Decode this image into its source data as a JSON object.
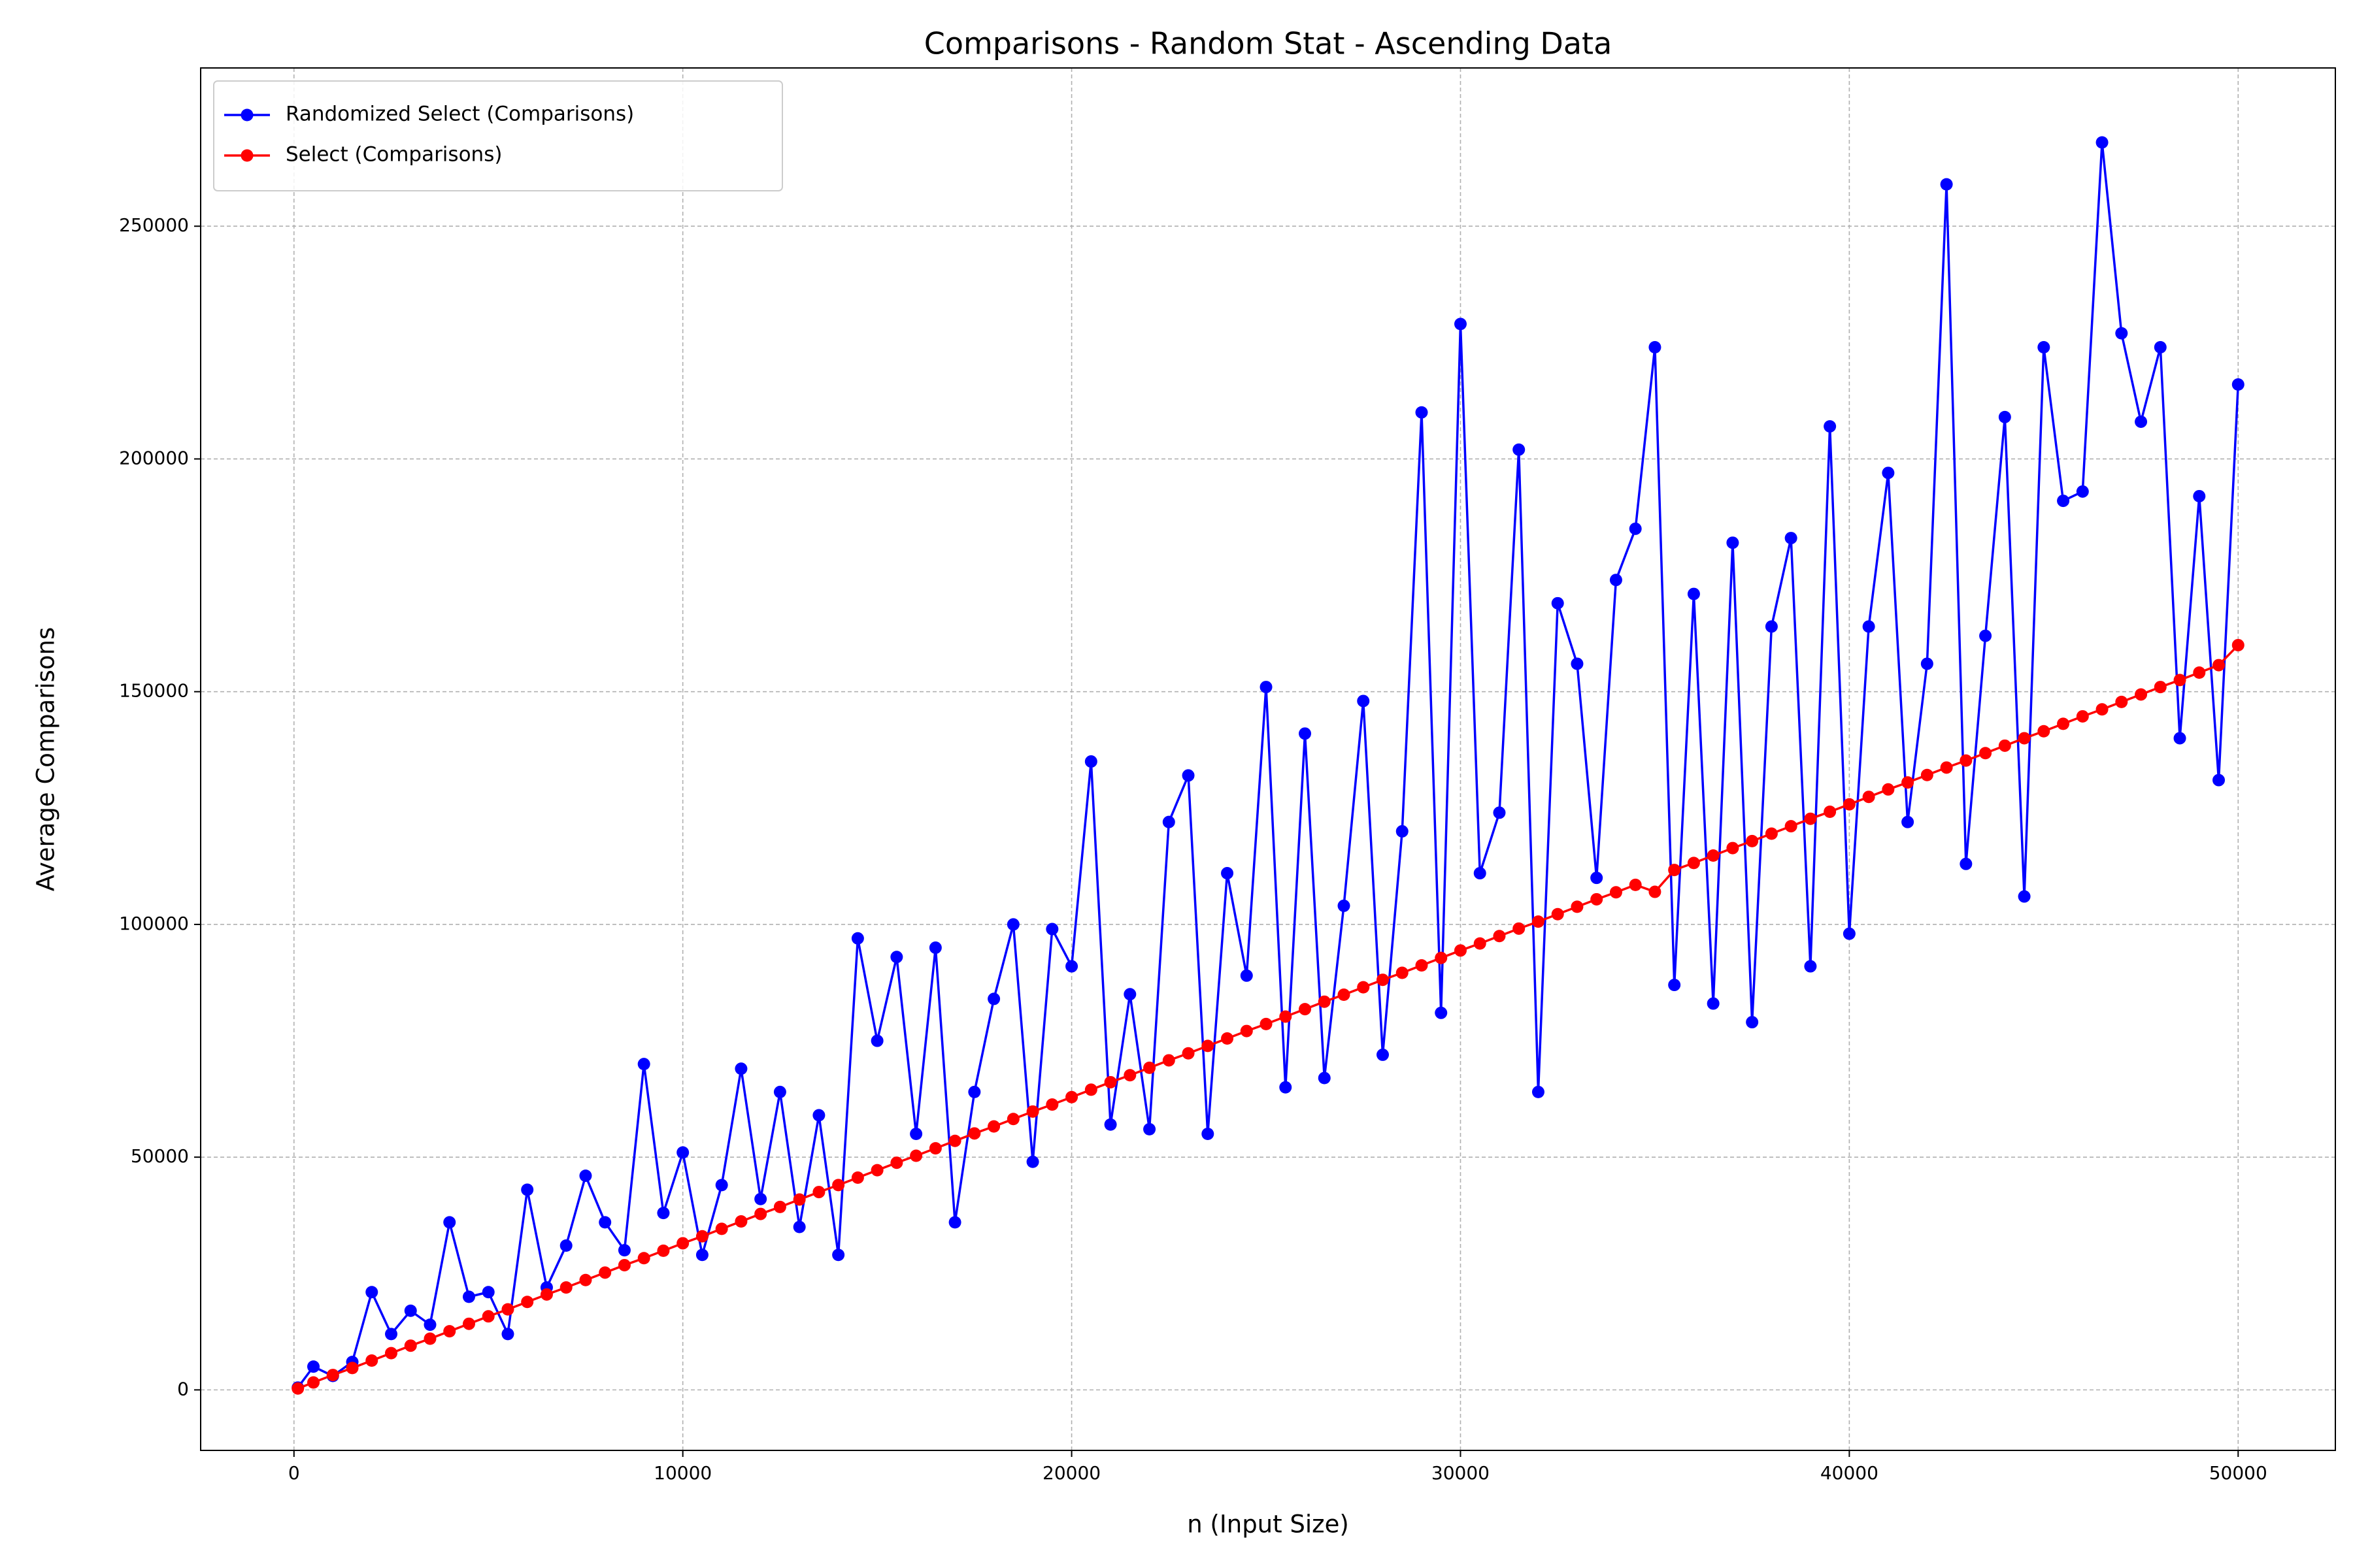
{
  "chart_data": {
    "type": "line",
    "title": "Comparisons - Random Stat - Ascending Data",
    "xlabel": "n (Input Size)",
    "ylabel": "Average Comparisons",
    "x": [
      100,
      500,
      1000,
      1500,
      2000,
      2500,
      3000,
      3500,
      4000,
      4500,
      5000,
      5500,
      6000,
      6500,
      7000,
      7500,
      8000,
      8500,
      9000,
      9500,
      10000,
      10500,
      11000,
      11500,
      12000,
      12500,
      13000,
      13500,
      14000,
      14500,
      15000,
      15500,
      16000,
      16500,
      17000,
      17500,
      18000,
      18500,
      19000,
      19500,
      20000,
      20500,
      21000,
      21500,
      22000,
      22500,
      23000,
      23500,
      24000,
      24500,
      25000,
      25500,
      26000,
      26500,
      27000,
      27500,
      28000,
      28500,
      29000,
      29500,
      30000,
      30500,
      31000,
      31500,
      32000,
      32500,
      33000,
      33500,
      34000,
      34500,
      35000,
      35500,
      36000,
      36500,
      37000,
      37500,
      38000,
      38500,
      39000,
      39500,
      40000,
      40500,
      41000,
      41500,
      42000,
      42500,
      43000,
      43500,
      44000,
      44500,
      45000,
      45500,
      46000,
      46500,
      47000,
      47500,
      48000,
      48500,
      49000,
      49500,
      50000
    ],
    "series": [
      {
        "name": "Randomized Select (Comparisons)",
        "color": "#0000ff",
        "values": [
          500,
          5000,
          3000,
          6000,
          21000,
          12000,
          17000,
          14000,
          36000,
          20000,
          21000,
          12000,
          43000,
          22000,
          31000,
          46000,
          36000,
          30000,
          70000,
          38000,
          51000,
          29000,
          44000,
          69000,
          41000,
          64000,
          35000,
          59000,
          29000,
          97000,
          75000,
          93000,
          55000,
          95000,
          36000,
          64000,
          84000,
          100000,
          49000,
          99000,
          91000,
          135000,
          57000,
          85000,
          56000,
          122000,
          132000,
          55000,
          111000,
          89000,
          151000,
          65000,
          141000,
          67000,
          104000,
          148000,
          72000,
          120000,
          210000,
          81000,
          229000,
          111000,
          124000,
          202000,
          64000,
          169000,
          156000,
          110000,
          174000,
          185000,
          224000,
          87000,
          171000,
          83000,
          182000,
          79000,
          164000,
          183000,
          91000,
          207000,
          98000,
          164000,
          197000,
          122000,
          156000,
          259000,
          113000,
          162000,
          209000,
          106000,
          224000,
          191000,
          193000,
          268000,
          227000,
          208000,
          224000,
          140000,
          192000,
          131000,
          216000
        ]
      },
      {
        "name": "Select (Comparisons)",
        "color": "#ff0000",
        "values": [
          300,
          1600,
          3200,
          4700,
          6300,
          7900,
          9500,
          11000,
          12600,
          14200,
          15800,
          17300,
          18900,
          20500,
          22000,
          23600,
          25200,
          26800,
          28300,
          29900,
          31500,
          33000,
          34600,
          36200,
          37800,
          39300,
          40900,
          42500,
          44000,
          45600,
          47200,
          48800,
          50300,
          51900,
          53500,
          55100,
          56600,
          58200,
          59800,
          61300,
          62900,
          64500,
          66100,
          67600,
          69200,
          70800,
          72300,
          73900,
          75500,
          77100,
          78600,
          80200,
          81800,
          83400,
          84900,
          86500,
          88100,
          89600,
          91200,
          92800,
          94400,
          95900,
          97500,
          99100,
          100600,
          102200,
          103800,
          105400,
          106900,
          108500,
          107000,
          111700,
          113200,
          114800,
          116400,
          117900,
          119500,
          121100,
          122700,
          124200,
          125800,
          127400,
          129000,
          130500,
          132100,
          133700,
          135200,
          136800,
          138400,
          140000,
          141500,
          143100,
          144700,
          146200,
          147800,
          149400,
          151000,
          152500,
          154100,
          155700,
          160000
        ]
      }
    ],
    "xlim": [
      -2400,
      52500
    ],
    "ylim": [
      -13000,
      284000
    ],
    "xticks": [
      0,
      10000,
      20000,
      30000,
      40000,
      50000
    ],
    "yticks": [
      0,
      50000,
      100000,
      150000,
      200000,
      250000
    ],
    "grid": true,
    "legend": "upper left"
  }
}
